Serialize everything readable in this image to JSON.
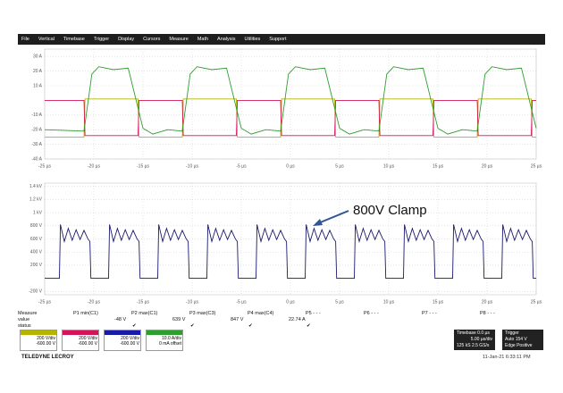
{
  "menu": [
    "File",
    "Vertical",
    "Timebase",
    "Trigger",
    "Display",
    "Cursors",
    "Measure",
    "Math",
    "Analysis",
    "Utilities",
    "Support"
  ],
  "chart_data": [
    {
      "type": "line",
      "grid": true,
      "xlim": [
        -25,
        25
      ],
      "xticks": [
        {
          "value": -25,
          "label": "-25 µs"
        },
        {
          "value": -20,
          "label": "-20 µs"
        },
        {
          "value": -15,
          "label": "-15 µs"
        },
        {
          "value": -10,
          "label": "-10 µs"
        },
        {
          "value": -5,
          "label": "-5 µs"
        },
        {
          "value": 0,
          "label": "0 µs"
        },
        {
          "value": 5,
          "label": "5 µs"
        },
        {
          "value": 10,
          "label": "10 µs"
        },
        {
          "value": 15,
          "label": "15 µs"
        },
        {
          "value": 20,
          "label": "20 µs"
        },
        {
          "value": 25,
          "label": "25 µs"
        }
      ],
      "ylim": [
        -40,
        35
      ],
      "yticks": [
        {
          "value": 30,
          "label": "30 A"
        },
        {
          "value": 20,
          "label": "20 A"
        },
        {
          "value": 10,
          "label": "10 A"
        },
        {
          "value": -10,
          "label": "-10 A"
        },
        {
          "value": -20,
          "label": "-20 A"
        },
        {
          "value": -30,
          "label": "-30 A"
        },
        {
          "value": -40,
          "label": "-40 A"
        }
      ],
      "series": [
        {
          "color": "#b5b500",
          "x": [
            -25,
            -21,
            -20.9,
            -15.5,
            -15.4,
            -11,
            -10.9,
            -5.5,
            -5.4,
            -1,
            -0.9,
            4.5,
            4.6,
            9,
            9.1,
            14.5,
            14.6,
            19,
            19.1,
            24.5,
            24.6,
            25
          ],
          "values": [
            -25,
            -25,
            1,
            1,
            -25,
            -25,
            1,
            1,
            -25,
            -25,
            1,
            1,
            -25,
            -25,
            1,
            1,
            -25,
            -25,
            1,
            1,
            -25,
            -25
          ]
        },
        {
          "color": "#d4145a",
          "x": [
            -25,
            -21,
            -20.9,
            -15.5,
            -15.4,
            -11,
            -10.9,
            -5.5,
            -5.4,
            -1,
            -0.9,
            4.5,
            4.6,
            9,
            9.1,
            14.5,
            14.6,
            19,
            19.1,
            24.5,
            24.6,
            25
          ],
          "values": [
            0,
            0,
            -24,
            -24,
            0,
            0,
            -24,
            -24,
            0,
            0,
            -24,
            -24,
            0,
            0,
            -24,
            -24,
            0,
            0,
            -24,
            -24,
            0,
            0
          ]
        },
        {
          "color": "#2e9e2e",
          "x": [
            -25,
            -21,
            -20.2,
            -19.5,
            -18,
            -16.5,
            -15,
            -14,
            -12.5,
            -11,
            -10.2,
            -9.5,
            -8,
            -6.5,
            -5,
            -4,
            -2.5,
            -1,
            -0.2,
            0.5,
            2,
            3.5,
            5,
            6,
            7.5,
            9,
            9.8,
            10.5,
            12,
            13.5,
            15,
            16,
            17.5,
            19,
            19.8,
            20.5,
            22,
            23.5,
            25
          ],
          "values": [
            -20,
            -21,
            18,
            23,
            21,
            22,
            -19,
            -23,
            -20,
            -21,
            18,
            23,
            21,
            22,
            -19,
            -23,
            -20,
            -21,
            18,
            23,
            21,
            22,
            -19,
            -23,
            -20,
            -21,
            18,
            23,
            21,
            22,
            -19,
            -23,
            -20,
            -21,
            18,
            23,
            21,
            22,
            -19
          ]
        }
      ]
    },
    {
      "type": "line",
      "grid": true,
      "annotation": "800V Clamp",
      "xlim": [
        -25,
        25
      ],
      "xticks": [
        {
          "value": -25,
          "label": "-25 µs"
        },
        {
          "value": -20,
          "label": "-20 µs"
        },
        {
          "value": -15,
          "label": "-15 µs"
        },
        {
          "value": -10,
          "label": "-10 µs"
        },
        {
          "value": -5,
          "label": "-5 µs"
        },
        {
          "value": 0,
          "label": "0 µs"
        },
        {
          "value": 5,
          "label": "5 µs"
        },
        {
          "value": 10,
          "label": "10 µs"
        },
        {
          "value": 15,
          "label": "15 µs"
        },
        {
          "value": 20,
          "label": "20 µs"
        },
        {
          "value": 25,
          "label": "25 µs"
        }
      ],
      "ylim": [
        -250,
        1450
      ],
      "yticks": [
        {
          "value": 1400,
          "label": "1.4 kV"
        },
        {
          "value": 1200,
          "label": "1.2 kV"
        },
        {
          "value": 1000,
          "label": "1 kV"
        },
        {
          "value": 800,
          "label": "800 V"
        },
        {
          "value": 600,
          "label": "600 V"
        },
        {
          "value": 400,
          "label": "400 V"
        },
        {
          "value": 200,
          "label": "200 V"
        },
        {
          "value": -200,
          "label": "-200 V"
        }
      ],
      "series": [
        {
          "color": "#1a1a6e",
          "x": [
            -25,
            -23.5,
            -23.4,
            -23,
            -22.6,
            -22.2,
            -21.8,
            -21.4,
            -21,
            -20.6,
            -20.4,
            -20.3,
            -18.5,
            -18.4,
            -18,
            -17.6,
            -17.2,
            -16.8,
            -16.4,
            -16,
            -15.6,
            -15.4,
            -15.3,
            -13.5,
            -13.4,
            -13,
            -12.6,
            -12.2,
            -11.8,
            -11.4,
            -11,
            -10.6,
            -10.4,
            -10.3,
            -8.5,
            -8.4,
            -8,
            -7.6,
            -7.2,
            -6.8,
            -6.4,
            -6,
            -5.6,
            -5.4,
            -5.3,
            -3.5,
            -3.4,
            -3,
            -2.6,
            -2.2,
            -1.8,
            -1.4,
            -1,
            -0.6,
            -0.4,
            -0.3,
            1.5,
            1.6,
            2,
            2.4,
            2.8,
            3.2,
            3.6,
            4,
            4.4,
            4.6,
            4.7,
            6.5,
            6.6,
            7,
            7.4,
            7.8,
            8.2,
            8.6,
            9,
            9.4,
            9.6,
            9.7,
            11.5,
            11.6,
            12,
            12.4,
            12.8,
            13.2,
            13.6,
            14,
            14.4,
            14.6,
            14.7,
            16.5,
            16.6,
            17,
            17.4,
            17.8,
            18.2,
            18.6,
            19,
            19.4,
            19.6,
            19.7,
            21.5,
            21.6,
            22,
            22.4,
            22.8,
            23.2,
            23.6,
            24,
            24.4,
            24.6,
            24.7,
            25
          ],
          "values": [
            0,
            0,
            820,
            560,
            760,
            580,
            740,
            590,
            730,
            600,
            560,
            0,
            0,
            820,
            560,
            760,
            580,
            740,
            590,
            730,
            600,
            560,
            0,
            0,
            820,
            560,
            760,
            580,
            740,
            590,
            730,
            600,
            560,
            0,
            0,
            820,
            560,
            760,
            580,
            740,
            590,
            730,
            600,
            560,
            0,
            0,
            820,
            560,
            760,
            580,
            740,
            590,
            730,
            600,
            560,
            0,
            0,
            820,
            560,
            760,
            580,
            740,
            590,
            730,
            600,
            560,
            0,
            0,
            820,
            560,
            760,
            580,
            740,
            590,
            730,
            600,
            560,
            0,
            0,
            820,
            560,
            760,
            580,
            740,
            590,
            730,
            600,
            560,
            0,
            0,
            820,
            560,
            760,
            580,
            740,
            590,
            730,
            600,
            560,
            0,
            0,
            820,
            560,
            760,
            580,
            740,
            590,
            730,
            600,
            560,
            0,
            0
          ]
        }
      ]
    }
  ],
  "measure": {
    "headers": [
      "Measure",
      "P1 min(C1)",
      "P2 max(C1)",
      "P3 max(C3)",
      "P4 max(C4)",
      "P5 - - -",
      "P6 - - -",
      "P7 - - -",
      "P8 - - -"
    ],
    "value": [
      "value",
      "-48 V",
      "639 V",
      "847 V",
      "22.74 A"
    ],
    "status": "status"
  },
  "channels": [
    {
      "color": "#b5b500",
      "scale": "200 V/div",
      "offset": "-600.00 V"
    },
    {
      "color": "#d4145a",
      "scale": "200 V/div",
      "offset": "-600.00 V"
    },
    {
      "color": "#1a1aa8",
      "scale": "200 V/div",
      "offset": "-600.00 V"
    },
    {
      "color": "#2e9e2e",
      "scale": "10.0 A/div",
      "offset": "0 mA offset"
    }
  ],
  "timebase": {
    "label": "Timebase",
    "delay": "0.0 µs",
    "scale": "5.00 µs/div",
    "rate": "2.5 GS/s",
    "samples": "125 kS"
  },
  "trigger": {
    "label": "Trigger",
    "mode": "Auto",
    "type": "Edge",
    "slope": "Positive",
    "level": "154 V"
  },
  "brand": "TELEDYNE LECROY",
  "timestamp": "11-Jan-21 6:33:11 PM"
}
